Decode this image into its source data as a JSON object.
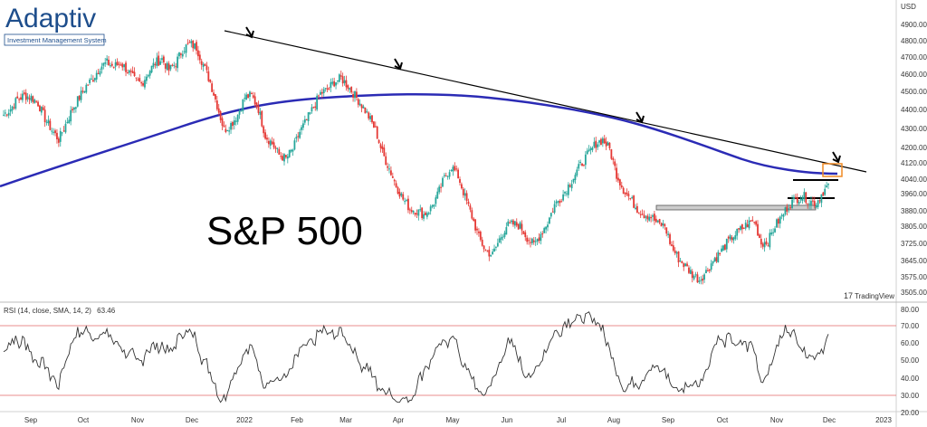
{
  "brand": {
    "name": "Adaptiv",
    "tagline": "Investment Management System"
  },
  "watermark": "TradingView",
  "chart_data": {
    "type": "candlestick",
    "title": "S&P 500",
    "currency": "USD",
    "price_axis": {
      "ticks": [
        "4900.00",
        "4800.00",
        "4700.00",
        "4600.00",
        "4500.00",
        "4400.00",
        "4300.00",
        "4200.00",
        "4120.00",
        "4040.00",
        "3960.00",
        "3880.00",
        "3805.00",
        "3725.00",
        "3645.00",
        "3575.00",
        "3505.00"
      ]
    },
    "rsi_axis": {
      "ticks": [
        "80.00",
        "70.00",
        "60.00",
        "50.00",
        "40.00",
        "30.00",
        "20.00"
      ],
      "overbought": 70,
      "oversold": 30
    },
    "date_axis": {
      "ticks": [
        "Sep",
        "Oct",
        "Nov",
        "Dec",
        "2022",
        "Feb",
        "Mar",
        "Apr",
        "May",
        "Jun",
        "Jul",
        "Aug",
        "Sep",
        "Oct",
        "Nov",
        "Dec",
        "2023"
      ]
    },
    "rsi_label": "RSI (14, close, SMA, 14, 2)",
    "rsi_value": "63.46",
    "price_series": [
      4430,
      4460,
      4510,
      4530,
      4520,
      4490,
      4410,
      4350,
      4300,
      4380,
      4460,
      4520,
      4580,
      4620,
      4680,
      4700,
      4680,
      4700,
      4660,
      4610,
      4590,
      4650,
      4700,
      4720,
      4660,
      4700,
      4770,
      4800,
      4780,
      4690,
      4600,
      4480,
      4350,
      4380,
      4430,
      4520,
      4530,
      4460,
      4320,
      4280,
      4220,
      4200,
      4250,
      4340,
      4400,
      4470,
      4540,
      4560,
      4600,
      4620,
      4580,
      4530,
      4480,
      4420,
      4350,
      4230,
      4150,
      4060,
      3990,
      3940,
      3930,
      3910,
      3940,
      4010,
      4100,
      4160,
      4110,
      4000,
      3900,
      3790,
      3720,
      3700,
      3780,
      3850,
      3860,
      3850,
      3790,
      3750,
      3810,
      3870,
      3960,
      4000,
      4060,
      4120,
      4180,
      4230,
      4280,
      4300,
      4250,
      4120,
      4040,
      3990,
      3940,
      3910,
      3900,
      3860,
      3850,
      3740,
      3680,
      3640,
      3600,
      3570,
      3610,
      3670,
      3710,
      3760,
      3800,
      3830,
      3860,
      3880,
      3760,
      3770,
      3850,
      3900,
      3960,
      3990,
      4010,
      3980,
      3970,
      4030,
      4070
    ]
  }
}
